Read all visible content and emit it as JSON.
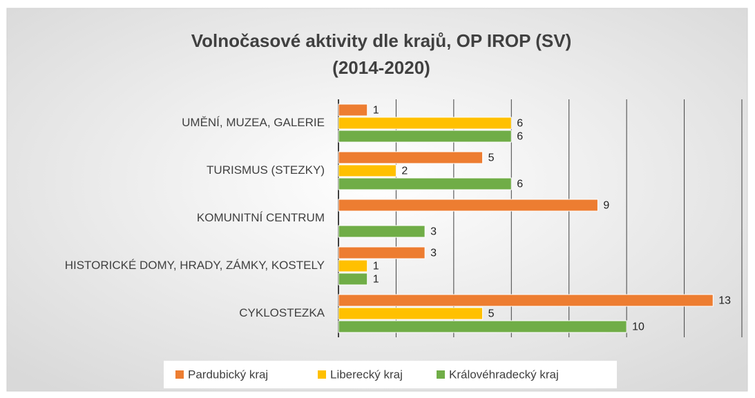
{
  "chart_data": {
    "type": "hbar",
    "title": "Volnočasové aktivity dle krajů, OP IROP (SV)",
    "subtitle": "(2014-2020)",
    "categories": [
      "UMĚNÍ, MUZEA, GALERIE",
      "TURISMUS (STEZKY)",
      "KOMUNITNÍ CENTRUM",
      "HISTORICKÉ DOMY, HRADY, ZÁMKY, KOSTELY",
      "CYKLOSTEZKA"
    ],
    "series": [
      {
        "name": "Pardubický kraj",
        "color": "#ed7d31",
        "values": [
          1,
          5,
          9,
          3,
          13
        ]
      },
      {
        "name": "Liberecký kraj",
        "color": "#ffc000",
        "values": [
          6,
          2,
          null,
          1,
          5
        ]
      },
      {
        "name": "Královéhradecký kraj",
        "color": "#70ad47",
        "values": [
          6,
          6,
          3,
          1,
          10
        ]
      }
    ],
    "xlim": [
      0,
      14
    ],
    "xticks": [
      0,
      2,
      4,
      6,
      8,
      10,
      12,
      14
    ],
    "grid": true,
    "legend": "bottom"
  }
}
